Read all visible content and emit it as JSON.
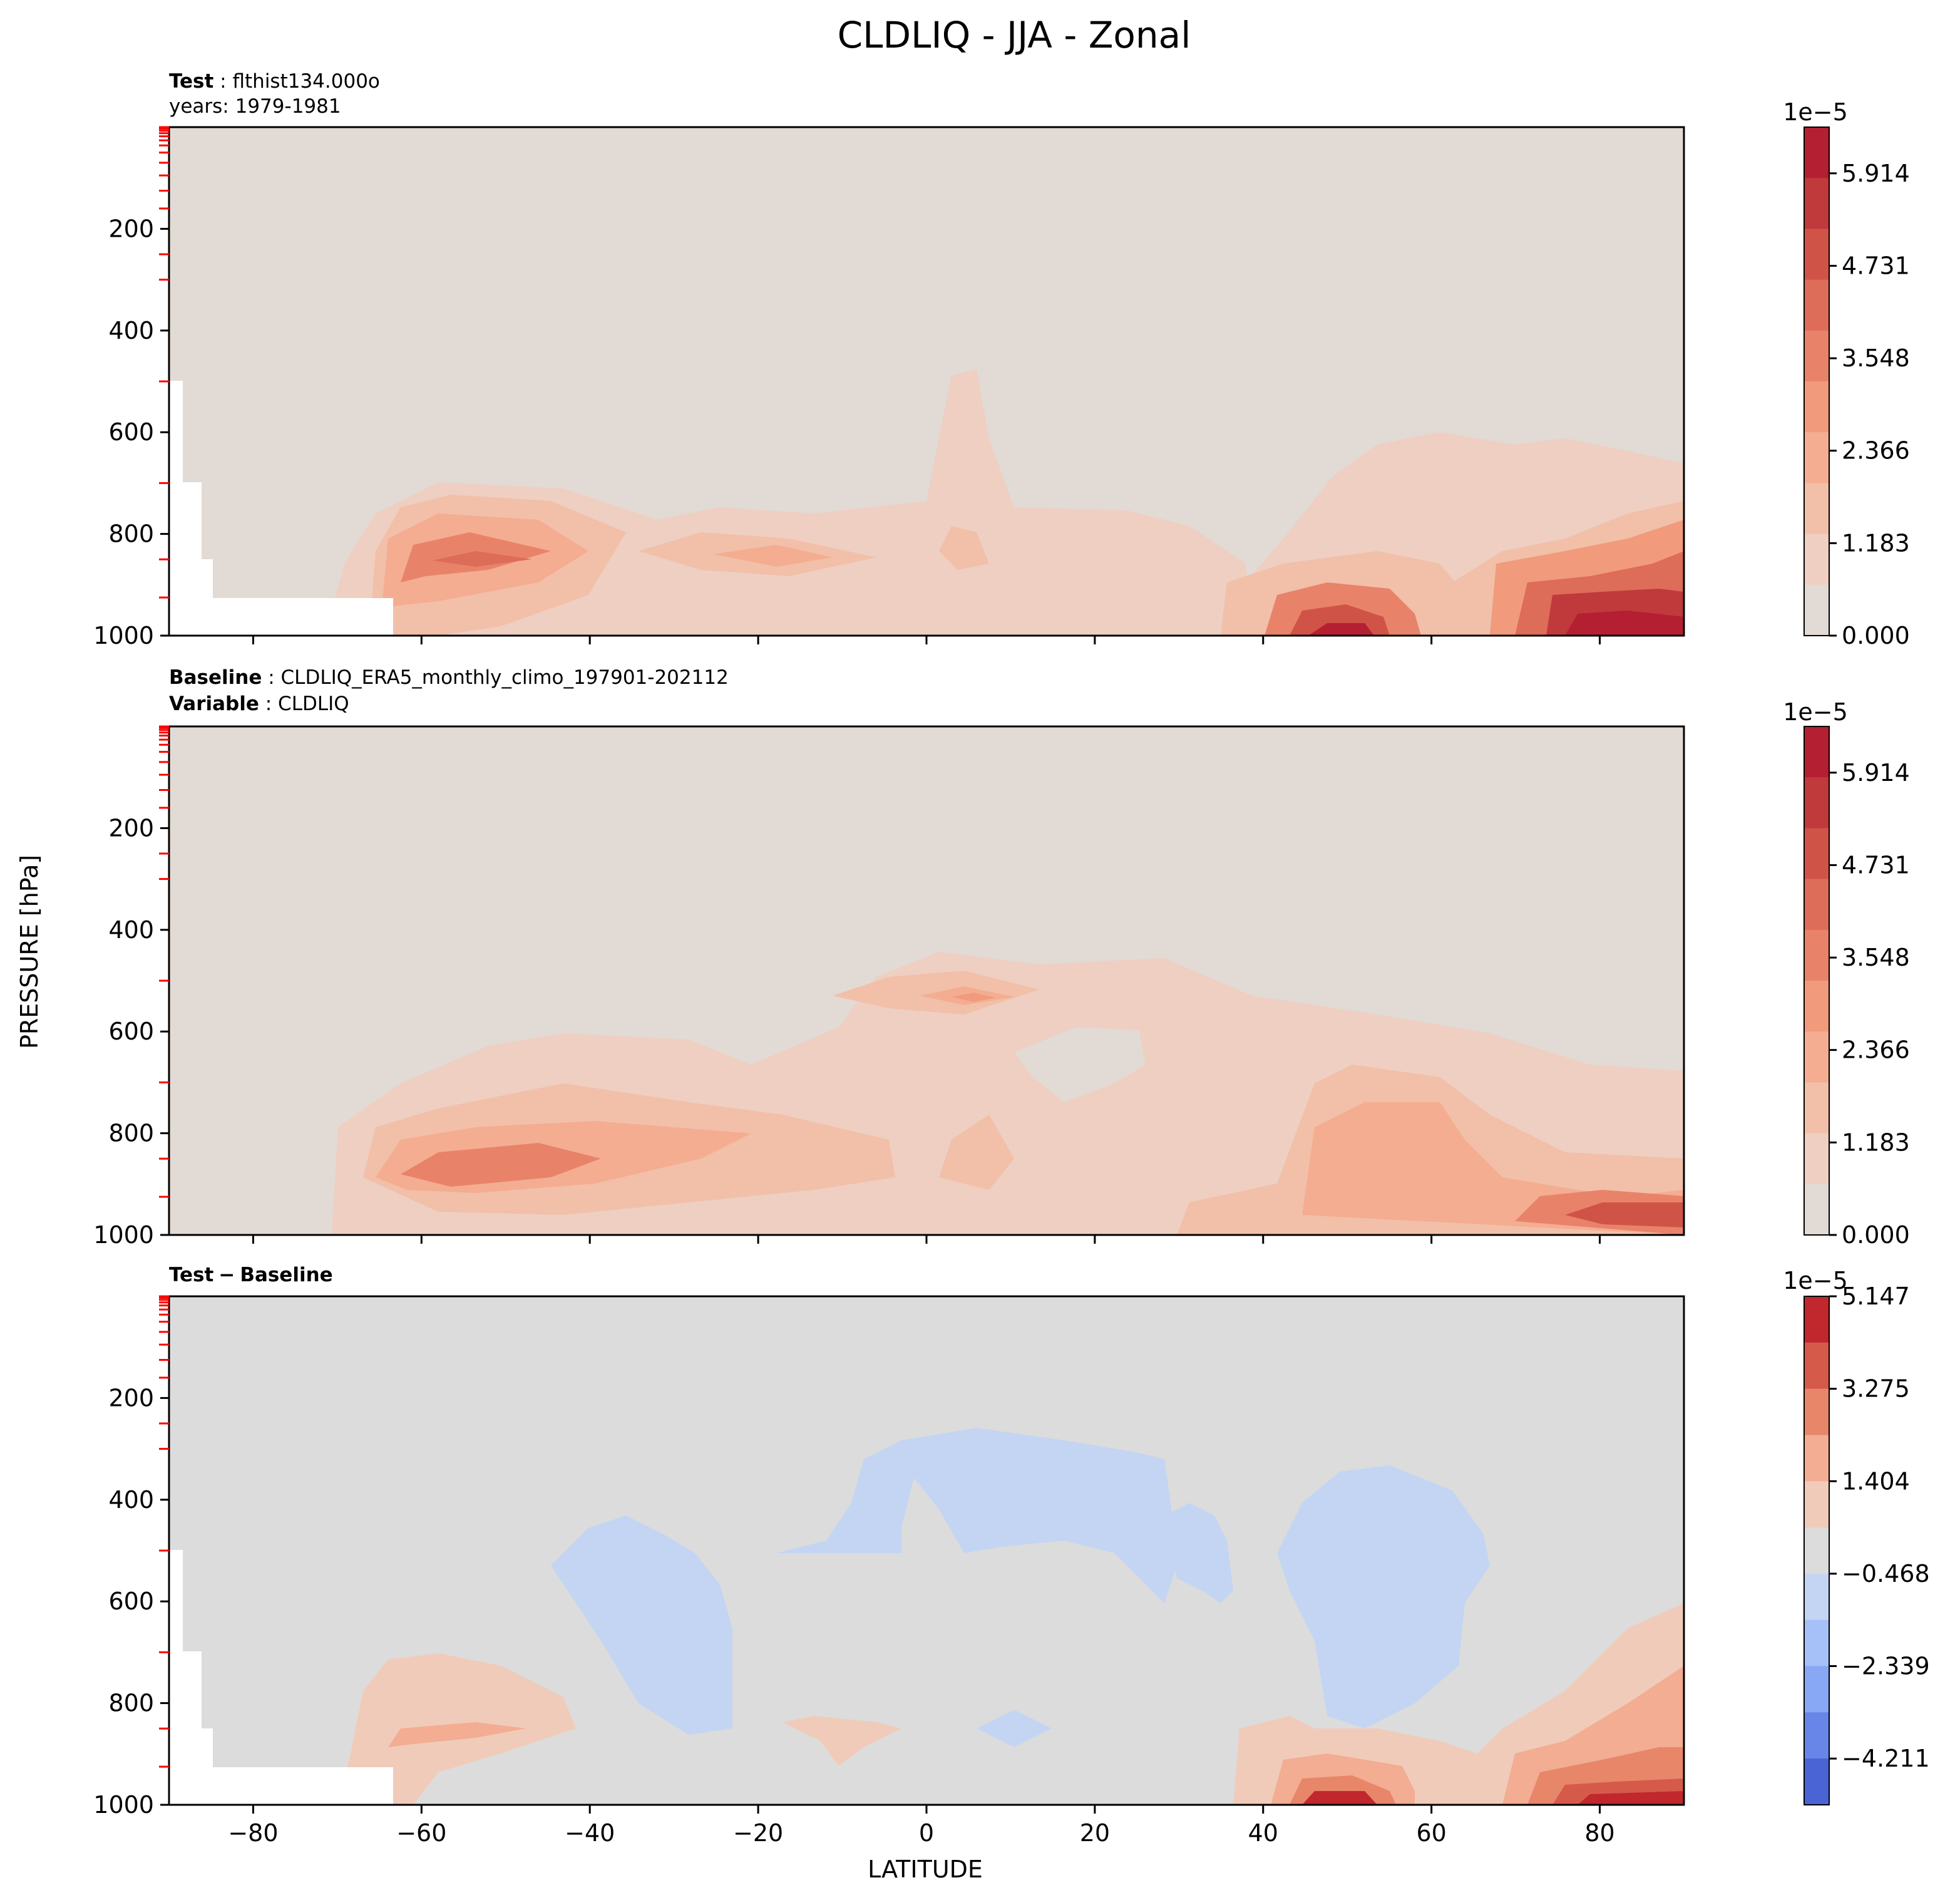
{
  "figure": {
    "title": "CLDLIQ - JJA - Zonal",
    "ylabel": "PRESSURE [hPa]",
    "xlabel": "LATITUDE"
  },
  "panels": {
    "test": {
      "label_key": "Test",
      "label_value": "flthist134.000o",
      "line2": "years: 1979-1981",
      "cbar_exponent": "1e−5"
    },
    "baseline": {
      "label_key": "Baseline",
      "label_value": "CLDLIQ_ERA5_monthly_climo_197901-202112",
      "line2_key": "Variable",
      "line2_value": "CLDLIQ",
      "cbar_exponent": "1e−5"
    },
    "diff": {
      "label_a": "Test",
      "label_sep": "−",
      "label_b": "Baseline",
      "cbar_exponent": "1e−5"
    }
  },
  "colors": {
    "bg_main": "#e2dad4",
    "bg_diff": "#dcdcdc",
    "main_levels": [
      "#e2dad4",
      "#eecfc1",
      "#f2bfa8",
      "#f4ad91",
      "#f19b7c",
      "#e8836a",
      "#dd6c58",
      "#d05348",
      "#c0393b",
      "#b41f32"
    ],
    "diff_neg": [
      "#4a64d6",
      "#6786e8",
      "#88a7f4",
      "#a6c0f8",
      "#c3d5f2"
    ],
    "diff_pos": [
      "#f1cbb9",
      "#f2ad92",
      "#e8866a",
      "#d65a4a",
      "#c0282d"
    ]
  },
  "chart_data": [
    {
      "type": "contourf",
      "name": "Test",
      "x_ticks": [
        -80,
        -60,
        -40,
        -20,
        0,
        20,
        40,
        60,
        80
      ],
      "xlim": [
        -90,
        90
      ],
      "y_ticks": [
        200,
        400,
        600,
        800,
        1000
      ],
      "ylim": [
        1000,
        0
      ],
      "colorbar": {
        "ticks": [
          "0.000",
          "1.183",
          "2.366",
          "3.548",
          "4.731",
          "5.914"
        ],
        "range": [
          0,
          6.505
        ]
      },
      "features": [
        {
          "lat": -50,
          "p": 850,
          "value": 4.3
        },
        {
          "lat": -10,
          "p": 850,
          "value": 2.8
        },
        {
          "lat": 5,
          "p": 850,
          "value": 2.2
        },
        {
          "lat": 6,
          "p": 550,
          "value": 1.3
        },
        {
          "lat": 50,
          "p": 990,
          "value": 6.2
        },
        {
          "lat": 82,
          "p": 970,
          "value": 6.3
        }
      ]
    },
    {
      "type": "contourf",
      "name": "Baseline",
      "x_ticks": [
        -80,
        -60,
        -40,
        -20,
        0,
        20,
        40,
        60,
        80
      ],
      "xlim": [
        -90,
        90
      ],
      "y_ticks": [
        200,
        400,
        600,
        800,
        1000
      ],
      "ylim": [
        1000,
        0
      ],
      "colorbar": {
        "ticks": [
          "0.000",
          "1.183",
          "2.366",
          "3.548",
          "4.731",
          "5.914"
        ],
        "range": [
          0,
          6.505
        ]
      },
      "features": [
        {
          "lat": -50,
          "p": 880,
          "value": 3.6
        },
        {
          "lat": 7,
          "p": 550,
          "value": 3.0
        },
        {
          "lat": 60,
          "p": 870,
          "value": 3.0
        },
        {
          "lat": 85,
          "p": 950,
          "value": 4.7
        }
      ]
    },
    {
      "type": "contourf",
      "name": "Test - Baseline",
      "x_ticks": [
        -80,
        -60,
        -40,
        -20,
        0,
        20,
        40,
        60,
        80
      ],
      "xlim": [
        -90,
        90
      ],
      "y_ticks": [
        200,
        400,
        600,
        800,
        1000
      ],
      "ylim": [
        1000,
        0
      ],
      "colorbar": {
        "ticks": [
          "5.147",
          "3.275",
          "1.404",
          "−0.468",
          "−2.339",
          "−4.211"
        ],
        "range": [
          -5.147,
          5.147
        ]
      },
      "features": [
        {
          "lat": -52,
          "p": 850,
          "value": 2.0
        },
        {
          "lat": -32,
          "p": 750,
          "value": -1.0
        },
        {
          "lat": 10,
          "p": 560,
          "value": -1.0
        },
        {
          "lat": 52,
          "p": 740,
          "value": -1.0
        },
        {
          "lat": 50,
          "p": 990,
          "value": 4.5
        },
        {
          "lat": 82,
          "p": 990,
          "value": 4.8
        }
      ]
    }
  ]
}
